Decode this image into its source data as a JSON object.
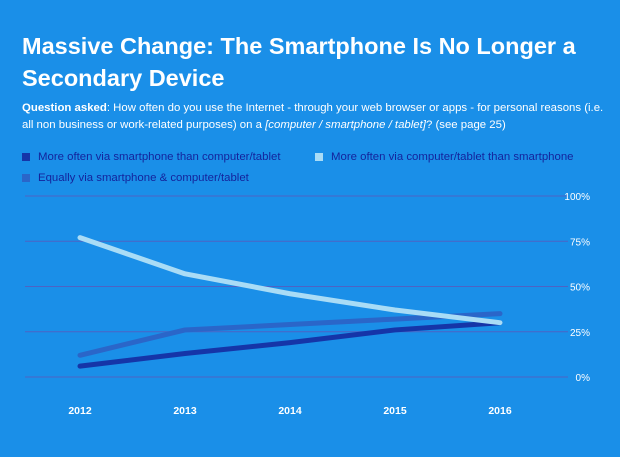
{
  "header": {
    "title": "Massive Change: The Smartphone Is No Longer a Secondary Device",
    "question_label": "Question asked",
    "question_text": ": How often do you use the Internet - through your web browser or apps - for personal reasons (i.e. all non business or work-related purposes) on a ",
    "question_italic": "[computer / smartphone / tablet]",
    "question_tail": "? (see page 25)"
  },
  "colors": {
    "background": "#1a8fe8",
    "smartphone": "#1535a8",
    "equally": "#2a66c9",
    "computer": "#a9dcf6",
    "gridline": "#4d63c4"
  },
  "chart_data": {
    "type": "line",
    "title": "Massive Change: The Smartphone Is No Longer a Secondary Device",
    "x": [
      "2012",
      "2013",
      "2014",
      "2015",
      "2016"
    ],
    "y_ticks": [
      "0%",
      "25%",
      "50%",
      "75%",
      "100%"
    ],
    "ylim": [
      0,
      100
    ],
    "grid": true,
    "legend_position": "top",
    "series": [
      {
        "key": "smartphone",
        "name": "More often via smartphone than computer/tablet",
        "values": [
          6,
          13,
          19,
          26,
          30
        ]
      },
      {
        "key": "computer",
        "name": "More often via computer/tablet than smartphone",
        "values": [
          77,
          57,
          46,
          37,
          30
        ]
      },
      {
        "key": "equally",
        "name": "Equally via smartphone & computer/tablet",
        "values": [
          12,
          26,
          29,
          32,
          35
        ]
      }
    ]
  }
}
